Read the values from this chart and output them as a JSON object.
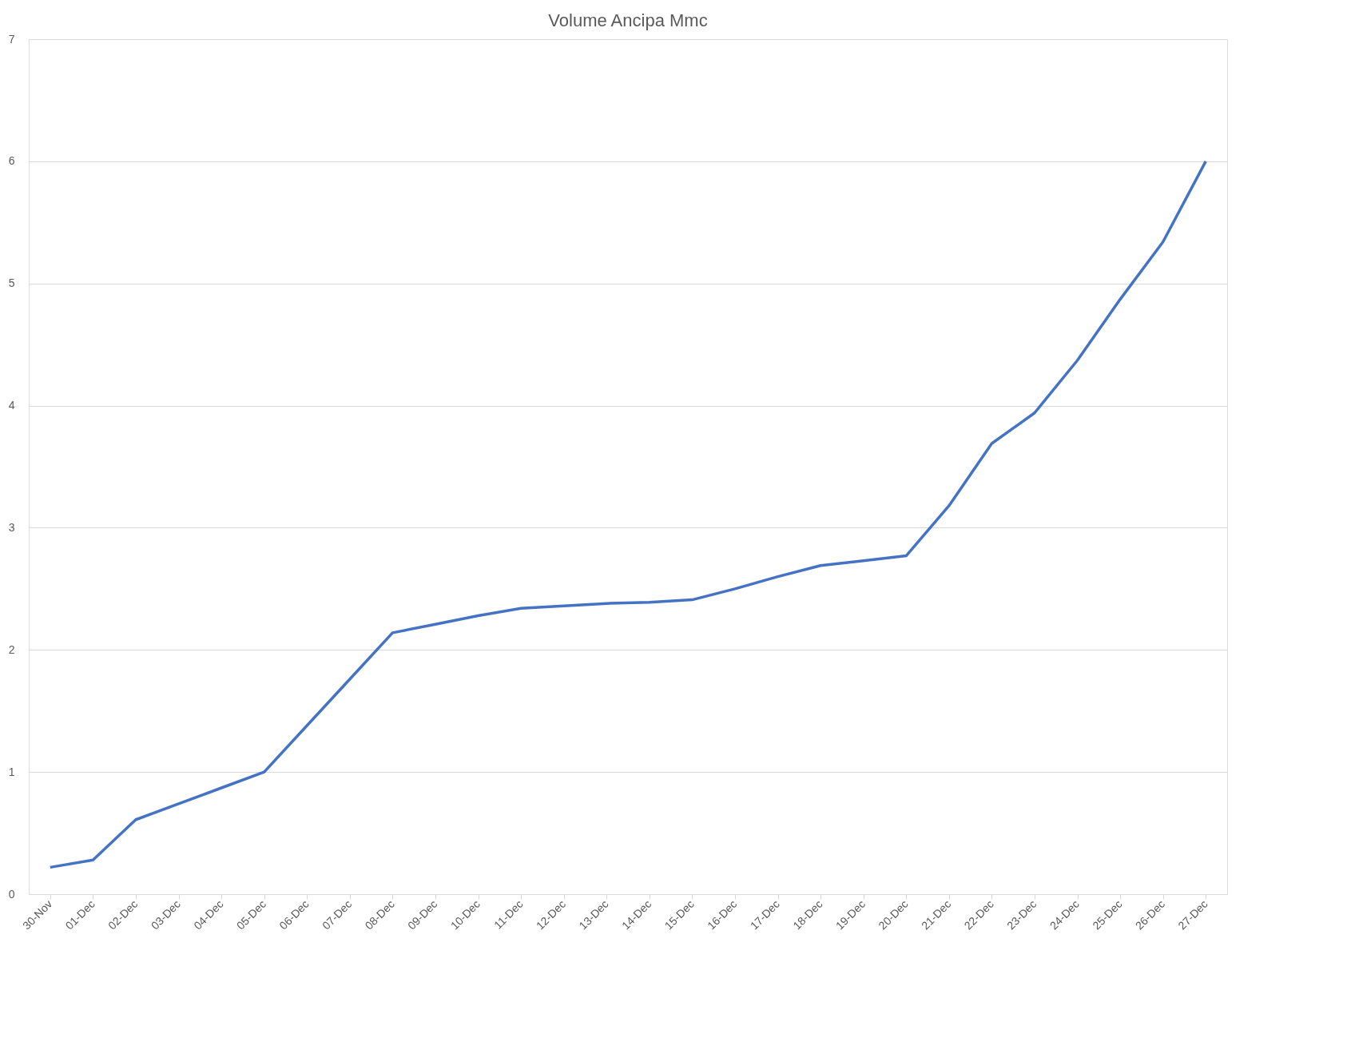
{
  "chart_data": {
    "type": "line",
    "title": "Volume Ancipa Mmc",
    "categories": [
      "30-Nov",
      "01-Dec",
      "02-Dec",
      "03-Dec",
      "04-Dec",
      "05-Dec",
      "06-Dec",
      "07-Dec",
      "08-Dec",
      "09-Dec",
      "10-Dec",
      "11-Dec",
      "12-Dec",
      "13-Dec",
      "14-Dec",
      "15-Dec",
      "16-Dec",
      "17-Dec",
      "18-Dec",
      "19-Dec",
      "20-Dec",
      "21-Dec",
      "22-Dec",
      "23-Dec",
      "24-Dec",
      "25-Dec",
      "26-Dec",
      "27-Dec"
    ],
    "series": [
      {
        "color": "#4472c4",
        "values": [
          0.22,
          0.28,
          0.61,
          0.74,
          0.87,
          1.0,
          1.38,
          1.76,
          2.14,
          2.21,
          2.28,
          2.34,
          2.36,
          2.38,
          2.39,
          2.41,
          2.5,
          2.6,
          2.69,
          2.73,
          2.77,
          3.18,
          3.69,
          3.94,
          4.37,
          4.87,
          5.34,
          6.0
        ]
      }
    ],
    "ylim": [
      0,
      7
    ],
    "yticks": [
      0,
      1,
      2,
      3,
      4,
      5,
      6,
      7
    ],
    "grid": "y",
    "marker": "none",
    "line_style": "solid"
  }
}
